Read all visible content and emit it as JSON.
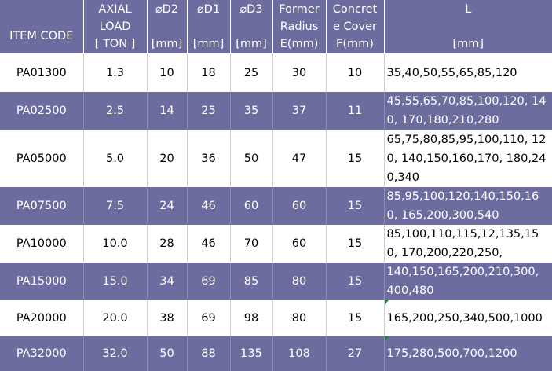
{
  "headers": {
    "item_code": [
      "ITEM CODE"
    ],
    "axial_load": [
      "AXIAL",
      "LOAD",
      "[ TON ]"
    ],
    "d2": [
      "⌀D2",
      "",
      "[mm]"
    ],
    "d1": [
      "⌀D1",
      "",
      "[mm]"
    ],
    "d3": [
      "⌀D3",
      "",
      "[mm]"
    ],
    "former_radius": [
      "Former",
      "Radius",
      "E(mm)"
    ],
    "concrete_cover": [
      "Concret",
      "e Cover",
      "F(mm)"
    ],
    "l": [
      "L",
      "",
      "[mm]"
    ]
  },
  "rows": [
    {
      "code": "PA01300",
      "load": "1.3",
      "d2": "10",
      "d1": "18",
      "d3": "25",
      "radius": "30",
      "cover": "10",
      "l": "35,40,50,55,65,85,120"
    },
    {
      "code": "PA02500",
      "load": "2.5",
      "d2": "14",
      "d1": "25",
      "d3": "35",
      "radius": "37",
      "cover": "11",
      "l": "45,55,65,70,85,100,120, 140, 170,180,210,280"
    },
    {
      "code": "PA05000",
      "load": "5.0",
      "d2": "20",
      "d1": "36",
      "d3": "50",
      "radius": "47",
      "cover": "15",
      "l": "65,75,80,85,95,100,110, 120, 140,150,160,170, 180,240,340"
    },
    {
      "code": "PA07500",
      "load": "7.5",
      "d2": "24",
      "d1": "46",
      "d3": "60",
      "radius": "60",
      "cover": "15",
      "l": "85,95,100,120,140,150,160, 165,200,300,540"
    },
    {
      "code": "PA10000",
      "load": "10.0",
      "d2": "28",
      "d1": "46",
      "d3": "70",
      "radius": "60",
      "cover": "15",
      "l": "85,100,110,115,12,135,150, 170,200,220,250,"
    },
    {
      "code": "PA15000",
      "load": "15.0",
      "d2": "34",
      "d1": "69",
      "d3": "85",
      "radius": "80",
      "cover": "15",
      "l": "140,150,165,200,210,300, 400,480"
    },
    {
      "code": "PA20000",
      "load": "20.0",
      "d2": "38",
      "d1": "69",
      "d3": "98",
      "radius": "80",
      "cover": "15",
      "l": "165,200,250,340,500,1000"
    },
    {
      "code": "PA32000",
      "load": "32.0",
      "d2": "50",
      "d1": "88",
      "d3": "135",
      "radius": "108",
      "cover": "27",
      "l": "175,280,500,700,1200"
    }
  ],
  "colors": {
    "header_bg": "#6c6c9e",
    "band_bg": "#6c6c9e",
    "light_bg": "#ffffff",
    "corner_marker": "#1f7a2e"
  }
}
